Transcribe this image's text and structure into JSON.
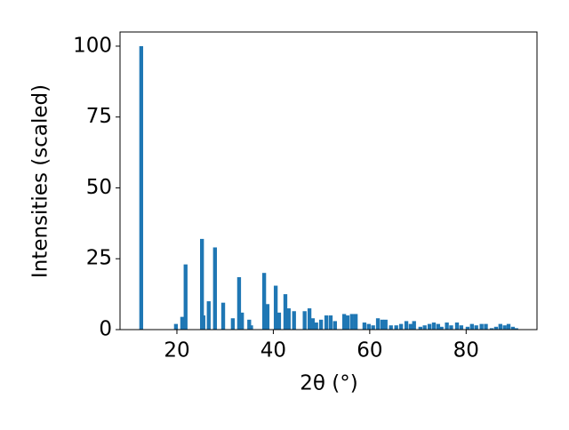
{
  "chart_data": {
    "type": "bar",
    "xlabel": "2θ (°)",
    "ylabel": "Intensities (scaled)",
    "color": "#1f77b4",
    "x": [
      12.6,
      19.8,
      21.1,
      21.8,
      25.2,
      25.5,
      26.6,
      27.9,
      29.6,
      31.6,
      32.9,
      33.5,
      35.0,
      35.4,
      38.1,
      38.8,
      40.5,
      41.2,
      42.5,
      43.2,
      44.3,
      46.5,
      47.5,
      48.2,
      48.9,
      49.9,
      51.0,
      51.9,
      52.8,
      54.7,
      55.4,
      56.3,
      57.1,
      58.9,
      59.8,
      60.7,
      61.7,
      62.6,
      63.3,
      64.4,
      65.5,
      66.5,
      67.6,
      68.5,
      69.2,
      70.5,
      71.4,
      72.4,
      73.3,
      74.2,
      74.9,
      76.0,
      76.9,
      78.1,
      79.0,
      80.3,
      81.2,
      82.1,
      83.2,
      84.1,
      85.3,
      86.2,
      87.1,
      88.0,
      88.8,
      89.7,
      90.4
    ],
    "values": [
      100,
      2,
      4.5,
      23,
      32,
      5,
      10,
      29,
      9.5,
      4,
      18.5,
      6,
      3.5,
      1.5,
      20,
      9,
      15.5,
      6,
      12.5,
      7.5,
      6.5,
      6.5,
      7.5,
      4,
      2.5,
      3.5,
      5,
      5,
      3,
      5.5,
      5,
      5.5,
      5.5,
      2.5,
      2,
      1.5,
      4,
      3.5,
      3.5,
      1.5,
      1.5,
      2,
      3,
      2,
      3,
      1,
      1.5,
      2,
      2.5,
      2,
      1,
      2.5,
      1.5,
      2.5,
      1.5,
      1,
      2,
      1.5,
      2,
      2,
      0.5,
      1,
      2,
      1.5,
      2,
      1,
      0.5
    ],
    "xlim": [
      8.2,
      94.7
    ],
    "ylim": [
      0,
      105
    ],
    "xticks": [
      20,
      40,
      60,
      80
    ],
    "yticks": [
      0,
      25,
      50,
      75,
      100
    ]
  }
}
